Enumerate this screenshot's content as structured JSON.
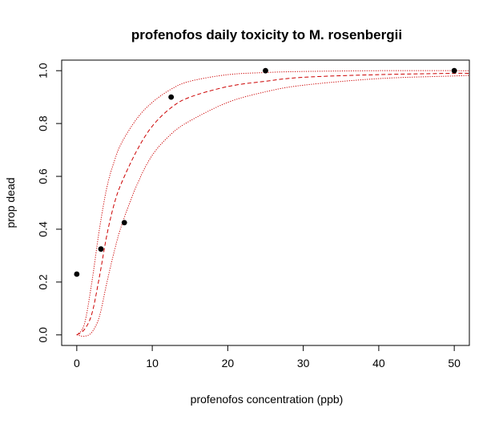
{
  "chart_data": {
    "type": "scatter",
    "title": "profenofos daily toxicity to M. rosenbergii",
    "xlabel": "profenofos concentration (ppb)",
    "ylabel": "prop dead",
    "xlim": [
      -2,
      52
    ],
    "ylim": [
      -0.04,
      1.04
    ],
    "x_ticks": [
      0,
      10,
      20,
      30,
      40,
      50
    ],
    "x_tick_labels": [
      "0",
      "10",
      "20",
      "30",
      "40",
      "50"
    ],
    "y_ticks": [
      0.0,
      0.2,
      0.4,
      0.6,
      0.8,
      1.0
    ],
    "y_tick_labels": [
      "0.0",
      "0.2",
      "0.4",
      "0.6",
      "0.8",
      "1.0"
    ],
    "grid": false,
    "points": {
      "x": [
        0,
        3.2,
        6.3,
        12.5,
        25,
        50
      ],
      "y": [
        0.23,
        0.325,
        0.425,
        0.9,
        1.0,
        1.0
      ],
      "color": "#000000"
    },
    "curves": [
      {
        "style": "dashed",
        "color": "#cc0000",
        "x": [
          0,
          1,
          2,
          3,
          4,
          5,
          6,
          8,
          10,
          12.5,
          15,
          20,
          25,
          30,
          40,
          50,
          52
        ],
        "y": [
          0.0,
          0.02,
          0.08,
          0.22,
          0.38,
          0.5,
          0.58,
          0.7,
          0.79,
          0.86,
          0.9,
          0.94,
          0.96,
          0.975,
          0.985,
          0.99,
          0.99
        ]
      },
      {
        "style": "dotted",
        "color": "#cc0000",
        "x": [
          0,
          1,
          2,
          3,
          4,
          5,
          6,
          8,
          10,
          12.5,
          15,
          20,
          25,
          30,
          40,
          50,
          52
        ],
        "y": [
          0.0,
          0.04,
          0.2,
          0.4,
          0.56,
          0.66,
          0.73,
          0.82,
          0.88,
          0.93,
          0.96,
          0.985,
          0.993,
          0.997,
          1.0,
          1.0,
          1.0
        ]
      },
      {
        "style": "dotted",
        "color": "#cc0000",
        "x": [
          0,
          1,
          2,
          3,
          4,
          5,
          6,
          8,
          10,
          12.5,
          15,
          20,
          25,
          30,
          40,
          50,
          52
        ],
        "y": [
          0.0,
          -0.005,
          0.01,
          0.07,
          0.2,
          0.32,
          0.42,
          0.57,
          0.68,
          0.76,
          0.81,
          0.88,
          0.92,
          0.945,
          0.97,
          0.98,
          0.982
        ]
      }
    ]
  }
}
